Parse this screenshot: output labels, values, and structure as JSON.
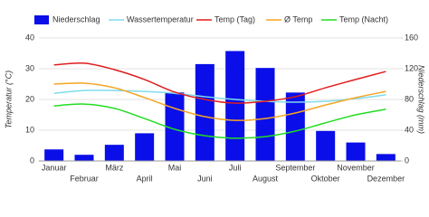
{
  "chart_data": {
    "type": "combo",
    "categories": [
      "Januar",
      "Februar",
      "März",
      "April",
      "Mai",
      "Juni",
      "Juli",
      "August",
      "September",
      "Oktober",
      "November",
      "Dezember"
    ],
    "series": [
      {
        "name": "Niederschlag",
        "type": "bar",
        "axis": "y2",
        "color": "#0a0ee8",
        "values": [
          15,
          8,
          21,
          36,
          89,
          126,
          143,
          121,
          89,
          39,
          24,
          9
        ]
      },
      {
        "name": "Wassertemperatur",
        "type": "line",
        "color": "#80dcec",
        "values": [
          22,
          22.9,
          22.9,
          22.6,
          22,
          20.9,
          20,
          19.4,
          19.1,
          19.4,
          20.3,
          21.5
        ]
      },
      {
        "name": "Temp (Tag)",
        "type": "line",
        "color": "#e01e1e",
        "values": [
          31.2,
          31.8,
          29.7,
          26.5,
          22.4,
          20,
          18.8,
          19.4,
          20.9,
          23.8,
          26.5,
          29.1
        ]
      },
      {
        "name": "Ø Temp",
        "type": "line",
        "color": "#f5a623",
        "values": [
          25,
          25.3,
          23.8,
          20.6,
          17.1,
          14.4,
          13.2,
          13.8,
          15.6,
          18.2,
          20.6,
          22.6
        ]
      },
      {
        "name": "Temp (Nacht)",
        "type": "line",
        "color": "#22dd22",
        "values": [
          17.9,
          18.5,
          17.1,
          13.8,
          10.3,
          8.2,
          7.4,
          7.9,
          9.7,
          12.4,
          15,
          16.8
        ]
      }
    ],
    "y_label": "Temperatur (°C)",
    "y2_label": "Niederschlag (mm)",
    "ylim": [
      0,
      40
    ],
    "yticks": [
      0,
      10,
      20,
      30,
      40
    ],
    "y2lim": [
      0,
      160
    ],
    "y2ticks": [
      0,
      40,
      80,
      120,
      160
    ],
    "grid": true,
    "legend": "top"
  }
}
